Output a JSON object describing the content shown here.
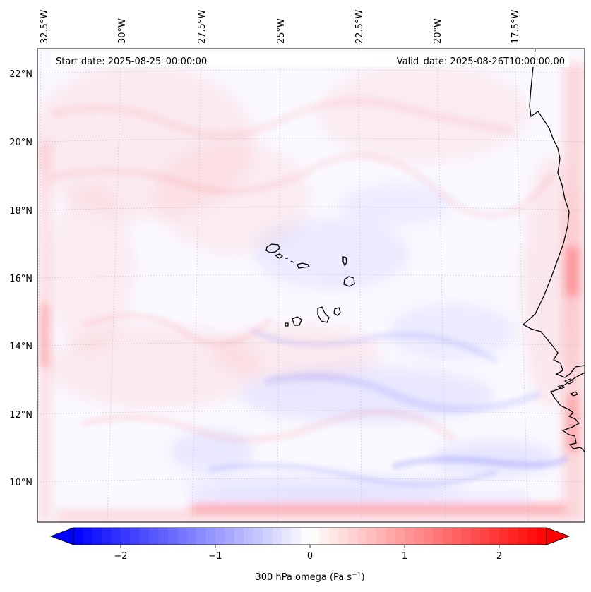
{
  "map": {
    "header": {
      "start_date": "Start date: 2025-08-25_00:00:00",
      "valid_date": "Valid_date: 2025-08-26T10:00:00.00"
    },
    "lon_labels": [
      "32.5°W",
      "30°W",
      "27.5°W",
      "25°W",
      "22.5°W",
      "20°W",
      "17.5°W"
    ],
    "lat_labels": [
      "22°N",
      "20°N",
      "18°N",
      "16°N",
      "14°N",
      "12°N",
      "10°N"
    ],
    "colors": {
      "negative": "#0000ff",
      "zero": "#ffffff",
      "positive": "#ff0000",
      "coast": "#000000",
      "grid": "#bbbbbb"
    }
  },
  "colorbar": {
    "ticks": [
      "−2",
      "−1",
      "0",
      "1",
      "2"
    ],
    "tick_values": [
      -2,
      -1,
      0,
      1,
      2
    ],
    "range": [
      -2.5,
      2.5
    ],
    "label_prefix": "300 hPa omega (Pa s",
    "label_exp": "−1",
    "label_suffix": ")"
  }
}
